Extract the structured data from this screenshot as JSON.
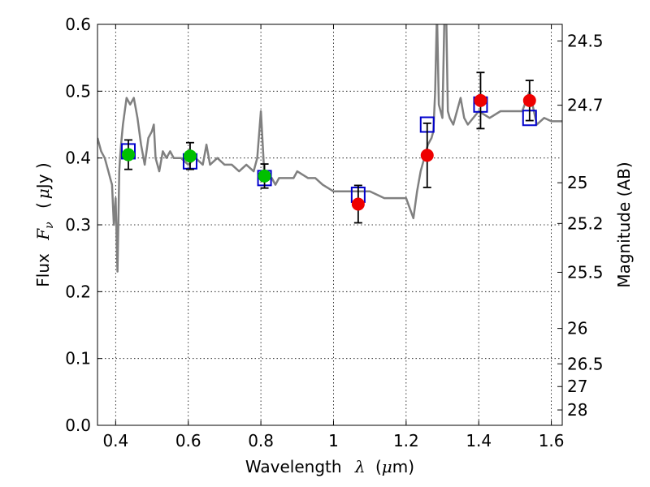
{
  "chart_data": {
    "type": "scatter",
    "xlabel_text": "Wavelength",
    "xlabel_symbol": "λ",
    "xlabel_unit_open": "(",
    "xlabel_unit_mu": "μ",
    "xlabel_unit_rest": "m)",
    "ylabel_text": "Flux",
    "ylabel_symbol": "F",
    "ylabel_sub": "ν",
    "ylabel_unit_open": "(",
    "ylabel_unit_mu": "μ",
    "ylabel_unit_rest": "Jy )",
    "y2label": "Magnitude (AB)",
    "xlim": [
      0.35,
      1.63
    ],
    "ylim": [
      0.0,
      0.6
    ],
    "x_ticks": [
      0.4,
      0.6,
      0.8,
      1.0,
      1.2,
      1.4,
      1.6
    ],
    "x_tick_labels": [
      "0.4",
      "0.6",
      "0.8",
      "1",
      "1.2",
      "1.4",
      "1.6"
    ],
    "y_ticks": [
      0.0,
      0.1,
      0.2,
      0.3,
      0.4,
      0.5,
      0.6
    ],
    "y_tick_labels": [
      "0.0",
      "0.1",
      "0.2",
      "0.3",
      "0.4",
      "0.5",
      "0.6"
    ],
    "y2_tick_labels": [
      "24.5",
      "24.7",
      "25",
      "25.2",
      "25.5",
      "26",
      "26.5",
      "27",
      "28"
    ],
    "y2_tick_values_flux": [
      0.575,
      0.479,
      0.363,
      0.302,
      0.229,
      0.145,
      0.092,
      0.058,
      0.023
    ],
    "grid": true,
    "colors": {
      "spectrum": "#808080",
      "model_box": "#0000cc",
      "green_points": "#00c000",
      "red_points": "#ee0000",
      "error_bars": "#000000"
    },
    "spectrum": {
      "name": "",
      "x": [
        0.35,
        0.36,
        0.37,
        0.38,
        0.385,
        0.39,
        0.395,
        0.4,
        0.405,
        0.41,
        0.412,
        0.415,
        0.42,
        0.43,
        0.44,
        0.45,
        0.46,
        0.47,
        0.48,
        0.49,
        0.5,
        0.505,
        0.51,
        0.52,
        0.53,
        0.54,
        0.55,
        0.56,
        0.58,
        0.6,
        0.62,
        0.64,
        0.65,
        0.66,
        0.68,
        0.7,
        0.72,
        0.74,
        0.76,
        0.78,
        0.79,
        0.8,
        0.81,
        0.83,
        0.84,
        0.85,
        0.87,
        0.89,
        0.9,
        0.93,
        0.95,
        0.97,
        1.0,
        1.03,
        1.06,
        1.1,
        1.14,
        1.17,
        1.2,
        1.22,
        1.23,
        1.24,
        1.25,
        1.26,
        1.27,
        1.275,
        1.28,
        1.285,
        1.29,
        1.3,
        1.305,
        1.31,
        1.315,
        1.32,
        1.33,
        1.34,
        1.35,
        1.36,
        1.37,
        1.4,
        1.43,
        1.46,
        1.49,
        1.52,
        1.54,
        1.56,
        1.58,
        1.6,
        1.63
      ],
      "y": [
        0.43,
        0.41,
        0.4,
        0.38,
        0.37,
        0.36,
        0.3,
        0.34,
        0.23,
        0.38,
        0.4,
        0.42,
        0.45,
        0.49,
        0.48,
        0.49,
        0.46,
        0.42,
        0.39,
        0.43,
        0.44,
        0.45,
        0.4,
        0.38,
        0.41,
        0.4,
        0.41,
        0.4,
        0.4,
        0.39,
        0.4,
        0.39,
        0.42,
        0.39,
        0.4,
        0.39,
        0.39,
        0.38,
        0.39,
        0.38,
        0.4,
        0.47,
        0.37,
        0.37,
        0.36,
        0.37,
        0.37,
        0.37,
        0.38,
        0.37,
        0.37,
        0.36,
        0.35,
        0.35,
        0.35,
        0.35,
        0.34,
        0.34,
        0.34,
        0.31,
        0.35,
        0.38,
        0.4,
        0.42,
        0.43,
        0.44,
        0.5,
        0.62,
        0.48,
        0.46,
        0.6,
        0.63,
        0.47,
        0.46,
        0.45,
        0.47,
        0.49,
        0.46,
        0.45,
        0.47,
        0.46,
        0.47,
        0.47,
        0.47,
        0.5,
        0.45,
        0.46,
        0.455,
        0.455
      ]
    },
    "model_points": {
      "name": "",
      "x": [
        0.435,
        0.605,
        0.81,
        1.068,
        1.258,
        1.405,
        1.54
      ],
      "y": [
        0.41,
        0.395,
        0.37,
        0.345,
        0.45,
        0.48,
        0.46
      ]
    },
    "observed_green": {
      "name": "",
      "x": [
        0.435,
        0.605,
        0.81
      ],
      "y": [
        0.405,
        0.403,
        0.373
      ],
      "err": [
        0.022,
        0.02,
        0.018
      ]
    },
    "observed_red": {
      "name": "",
      "x": [
        1.068,
        1.258,
        1.405,
        1.54
      ],
      "y": [
        0.331,
        0.404,
        0.486,
        0.486
      ],
      "err": [
        0.028,
        0.048,
        0.042,
        0.03
      ]
    }
  }
}
